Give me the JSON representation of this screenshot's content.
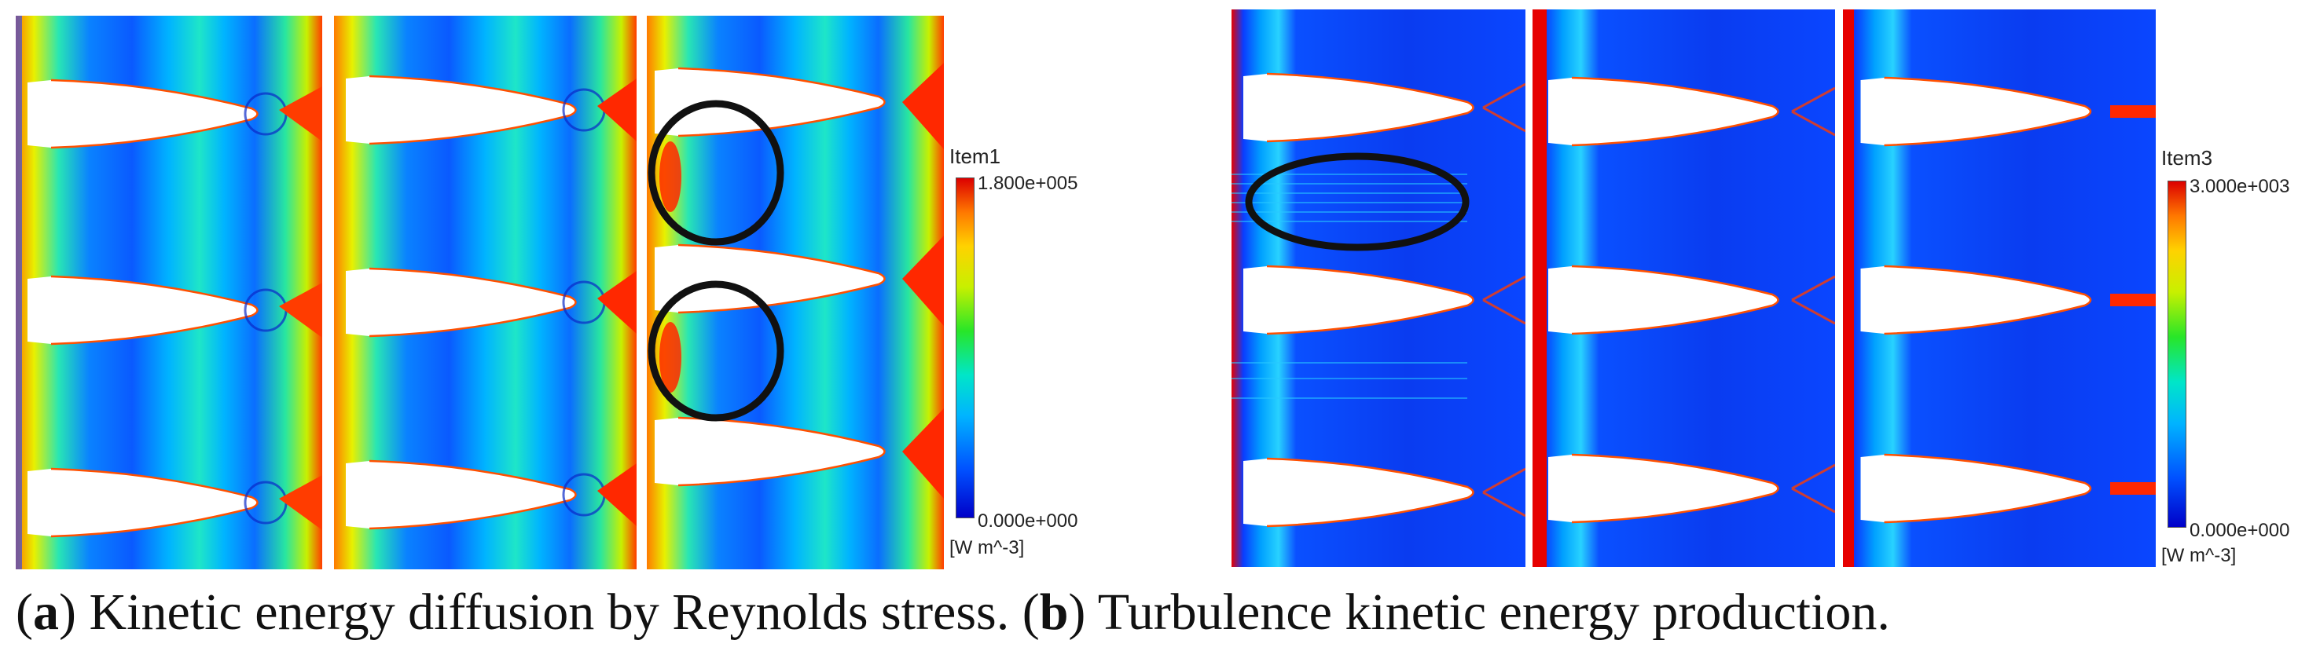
{
  "legends": [
    {
      "title": "Item1",
      "max": "1.800e+005",
      "min": "0.000e+000",
      "unit": "[W m^-3]"
    },
    {
      "title": "Item3",
      "max": "3.000e+003",
      "min": "0.000e+000",
      "unit": "[W m^-3]"
    }
  ],
  "caption": {
    "a_open": "(",
    "a_letter": "a",
    "a_text": ") Kinetic energy diffusion by Reynolds stress. (",
    "b_letter": "b",
    "b_text": ") Turbulence kinetic energy production."
  },
  "colormap": [
    "#0000c8",
    "#0050ff",
    "#00b4ff",
    "#00e6c8",
    "#28e628",
    "#c8f000",
    "#ffd200",
    "#ff7800",
    "#dc0000"
  ]
}
